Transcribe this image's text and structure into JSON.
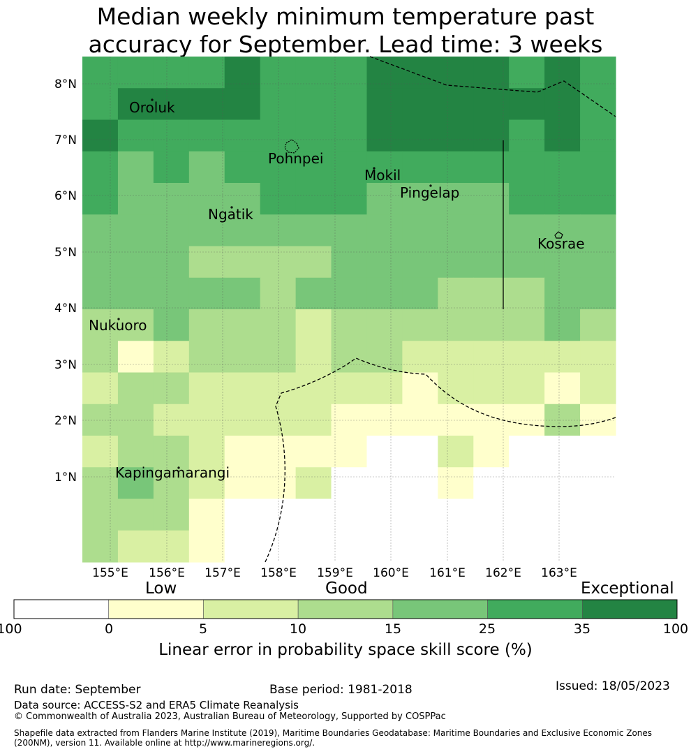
{
  "title_line1": "Median weekly minimum temperature past",
  "title_line2": "accuracy for September. Lead time: 3 weeks",
  "map": {
    "lon_labels": [
      "155°E",
      "156°E",
      "157°E",
      "158°E",
      "159°E",
      "160°E",
      "161°E",
      "162°E",
      "163°E"
    ],
    "lat_labels": [
      "8°N",
      "7°N",
      "6°N",
      "5°N",
      "4°N",
      "3°N",
      "2°N",
      "1°N"
    ],
    "places": [
      {
        "name": "Oroluk"
      },
      {
        "name": "Pohnpei"
      },
      {
        "name": "Mokil"
      },
      {
        "name": "Pingelap"
      },
      {
        "name": "Ngatik"
      },
      {
        "name": "Kosrae"
      },
      {
        "name": "Nukuoro"
      },
      {
        "name": "Kapingamarangi"
      }
    ],
    "grid_rows": [
      [
        5,
        5,
        5,
        5,
        6,
        5,
        5,
        5,
        6,
        6,
        6,
        6,
        5,
        6,
        5
      ],
      [
        5,
        6,
        6,
        6,
        6,
        5,
        5,
        5,
        6,
        6,
        6,
        6,
        6,
        6,
        5
      ],
      [
        6,
        5,
        5,
        5,
        5,
        5,
        5,
        5,
        6,
        6,
        6,
        6,
        5,
        6,
        5
      ],
      [
        5,
        4,
        5,
        4,
        5,
        5,
        5,
        5,
        5,
        5,
        5,
        5,
        5,
        5,
        5
      ],
      [
        5,
        4,
        4,
        4,
        4,
        5,
        5,
        5,
        4,
        4,
        4,
        4,
        5,
        5,
        5
      ],
      [
        4,
        4,
        4,
        4,
        4,
        4,
        4,
        4,
        4,
        4,
        4,
        4,
        4,
        4,
        4
      ],
      [
        4,
        4,
        4,
        3,
        3,
        3,
        3,
        4,
        4,
        4,
        4,
        4,
        4,
        4,
        4
      ],
      [
        4,
        4,
        4,
        4,
        4,
        3,
        4,
        4,
        4,
        4,
        3,
        3,
        3,
        4,
        4
      ],
      [
        3,
        3,
        4,
        3,
        3,
        3,
        2,
        3,
        3,
        3,
        3,
        3,
        3,
        4,
        3
      ],
      [
        3,
        1,
        2,
        3,
        3,
        3,
        2,
        3,
        3,
        2,
        2,
        2,
        2,
        2,
        2
      ],
      [
        2,
        3,
        3,
        2,
        2,
        2,
        2,
        2,
        2,
        1,
        2,
        2,
        2,
        1,
        2
      ],
      [
        3,
        3,
        2,
        2,
        2,
        2,
        2,
        1,
        1,
        1,
        1,
        1,
        1,
        3,
        1
      ],
      [
        2,
        3,
        3,
        2,
        1,
        1,
        1,
        1,
        0,
        0,
        2,
        1,
        0,
        0,
        0
      ],
      [
        3,
        4,
        3,
        2,
        1,
        1,
        2,
        0,
        0,
        0,
        1,
        0,
        0,
        0,
        0
      ],
      [
        3,
        3,
        3,
        1,
        0,
        0,
        0,
        0,
        0,
        0,
        0,
        0,
        0,
        0,
        0
      ],
      [
        3,
        2,
        2,
        1,
        0,
        0,
        0,
        0,
        0,
        0,
        0,
        0,
        0,
        0,
        0
      ]
    ]
  },
  "colorbar": {
    "category_low": "Low",
    "category_good": "Good",
    "category_exceptional": "Exceptional",
    "ticks": [
      "-100",
      "0",
      "5",
      "10",
      "15",
      "25",
      "35",
      "100"
    ],
    "colors": [
      "#ffffff",
      "#ffffcc",
      "#d9f0a3",
      "#addd8e",
      "#78c679",
      "#41ab5d",
      "#238443"
    ],
    "title": "Linear error in probability space skill score (%)"
  },
  "footer": {
    "run_date": "Run date: September",
    "base_period": "Base period: 1981-2018",
    "issued": "Issued: 18/05/2023",
    "data_source": "Data source: ACCESS-S2 and ERA5 Climate Reanalysis",
    "copyright": "© Commonwealth of Australia 2023, Australian Bureau of Meteorology, Supported by COSPPac",
    "shapefile_line1": "Shapefile data extracted from Flanders Marine Institute (2019), Maritime Boundaries Geodatabase: Maritime Boundaries and Exclusive Economic Zones",
    "shapefile_line2": "(200NM), version 11. Available online at http://www.marineregions.org/."
  }
}
